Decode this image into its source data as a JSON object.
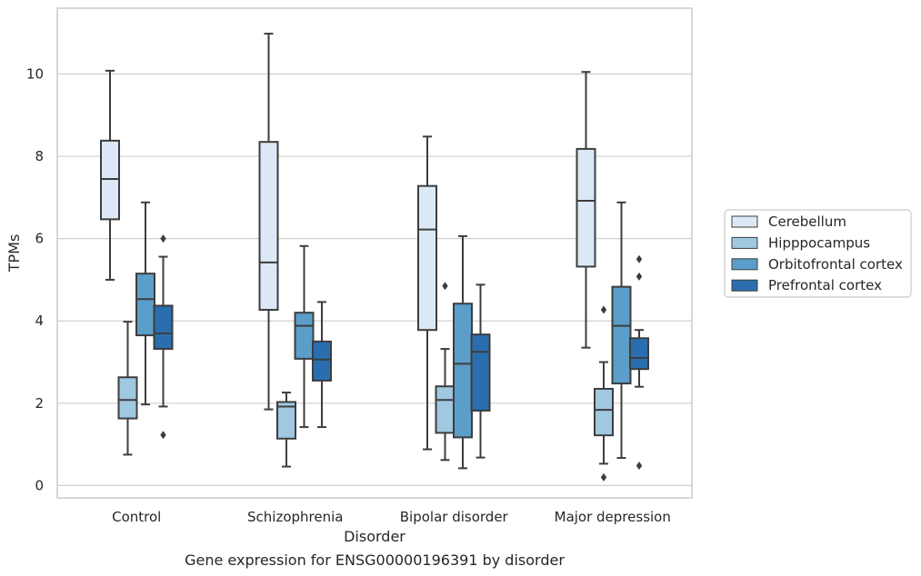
{
  "chart_data": {
    "type": "box",
    "title": "Gene expression for ENSG00000196391 by disorder",
    "xlabel": "Disorder",
    "ylabel": "TPMs",
    "ylim": [
      -0.3,
      11.6
    ],
    "yticks": [
      0,
      2,
      4,
      6,
      8,
      10
    ],
    "grid": "horizontal",
    "legend_position": "right",
    "categories": [
      "Control",
      "Schizophrenia",
      "Bipolar disorder",
      "Major depression"
    ],
    "series": [
      {
        "name": "Cerebellum",
        "color": "#dbe9f6",
        "boxes": [
          {
            "whislo": 5.0,
            "q1": 6.47,
            "med": 7.45,
            "q3": 8.38,
            "whishi": 10.08,
            "fliers": []
          },
          {
            "whislo": 1.85,
            "q1": 4.27,
            "med": 5.42,
            "q3": 8.35,
            "whishi": 10.98,
            "fliers": []
          },
          {
            "whislo": 0.88,
            "q1": 3.78,
            "med": 6.22,
            "q3": 7.28,
            "whishi": 8.48,
            "fliers": []
          },
          {
            "whislo": 3.35,
            "q1": 5.32,
            "med": 6.92,
            "q3": 8.18,
            "whishi": 10.05,
            "fliers": []
          }
        ]
      },
      {
        "name": "Hipppocampus",
        "color": "#a0c8e0",
        "boxes": [
          {
            "whislo": 0.75,
            "q1": 1.63,
            "med": 2.08,
            "q3": 2.63,
            "whishi": 3.98,
            "fliers": []
          },
          {
            "whislo": 0.46,
            "q1": 1.14,
            "med": 1.92,
            "q3": 2.03,
            "whishi": 2.26,
            "fliers": []
          },
          {
            "whislo": 0.62,
            "q1": 1.28,
            "med": 2.08,
            "q3": 2.41,
            "whishi": 3.32,
            "fliers": [
              4.85
            ]
          },
          {
            "whislo": 0.53,
            "q1": 1.22,
            "med": 1.84,
            "q3": 2.35,
            "whishi": 3.0,
            "fliers": [
              0.2,
              4.27
            ]
          }
        ]
      },
      {
        "name": "Orbitofrontal cortex",
        "color": "#5a9ec9",
        "boxes": [
          {
            "whislo": 1.97,
            "q1": 3.65,
            "med": 4.53,
            "q3": 5.15,
            "whishi": 6.88,
            "fliers": []
          },
          {
            "whislo": 1.42,
            "q1": 3.08,
            "med": 3.88,
            "q3": 4.2,
            "whishi": 5.82,
            "fliers": []
          },
          {
            "whislo": 0.42,
            "q1": 1.17,
            "med": 2.96,
            "q3": 4.42,
            "whishi": 6.06,
            "fliers": []
          },
          {
            "whislo": 0.67,
            "q1": 2.48,
            "med": 3.88,
            "q3": 4.83,
            "whishi": 6.88,
            "fliers": []
          }
        ]
      },
      {
        "name": "Prefrontal cortex",
        "color": "#2a6eb0",
        "boxes": [
          {
            "whislo": 1.92,
            "q1": 3.32,
            "med": 3.7,
            "q3": 4.37,
            "whishi": 5.56,
            "fliers": [
              1.23,
              6.0
            ]
          },
          {
            "whislo": 1.42,
            "q1": 2.55,
            "med": 3.06,
            "q3": 3.5,
            "whishi": 4.46,
            "fliers": []
          },
          {
            "whislo": 0.68,
            "q1": 1.82,
            "med": 3.25,
            "q3": 3.67,
            "whishi": 4.88,
            "fliers": []
          },
          {
            "whislo": 2.4,
            "q1": 2.83,
            "med": 3.1,
            "q3": 3.58,
            "whishi": 3.78,
            "fliers": [
              0.48,
              5.08,
              5.5
            ]
          }
        ]
      }
    ]
  }
}
